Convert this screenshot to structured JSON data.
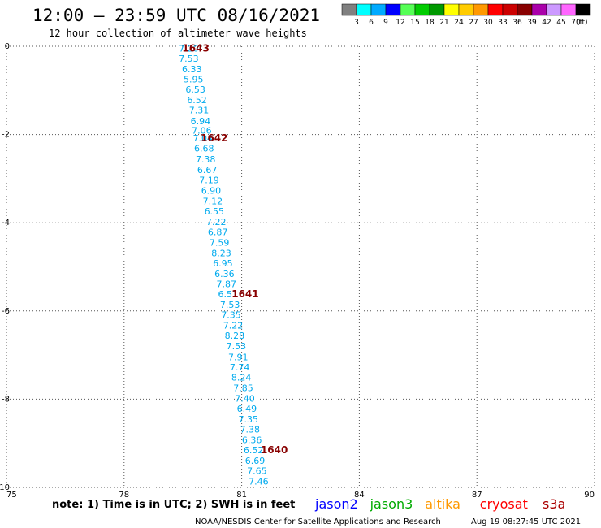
{
  "header": {
    "title": "12:00 – 23:59 UTC 08/16/2021",
    "subtitle": "12 hour collection of altimeter wave heights"
  },
  "legend": {
    "unit": "(ft)",
    "items": [
      {
        "label": "3",
        "color": "#808080"
      },
      {
        "label": "6",
        "color": "#00ffff"
      },
      {
        "label": "9",
        "color": "#00aaff"
      },
      {
        "label": "12",
        "color": "#0000ff"
      },
      {
        "label": "15",
        "color": "#55ff55"
      },
      {
        "label": "18",
        "color": "#00cc00"
      },
      {
        "label": "21",
        "color": "#009900"
      },
      {
        "label": "24",
        "color": "#ffff00"
      },
      {
        "label": "27",
        "color": "#ffcc00"
      },
      {
        "label": "30",
        "color": "#ff9900"
      },
      {
        "label": "33",
        "color": "#ff0000"
      },
      {
        "label": "36",
        "color": "#cc0000"
      },
      {
        "label": "39",
        "color": "#880000"
      },
      {
        "label": "42",
        "color": "#aa00aa"
      },
      {
        "label": "45",
        "color": "#cc99ff"
      },
      {
        "label": "70",
        "color": "#ff66ff"
      },
      {
        "label": "",
        "color": "#000000"
      }
    ]
  },
  "footer": {
    "note": "note: 1) Time is in UTC; 2) SWH is in feet",
    "satellites": [
      {
        "name": "jason2",
        "color": "#0000ff"
      },
      {
        "name": "jason3",
        "color": "#00aa00"
      },
      {
        "name": "altika",
        "color": "#ff9900"
      },
      {
        "name": "cryosat",
        "color": "#ff0000"
      },
      {
        "name": "s3a",
        "color": "#aa0000"
      }
    ],
    "credit": "NOAA/NESDIS Center for Satellite Applications and Research",
    "timestamp": "Aug 19 08:27:45 UTC 2021"
  },
  "chart_data": {
    "type": "scatter",
    "xlim": [
      75,
      90
    ],
    "ylim": [
      -10,
      0
    ],
    "x_ticks": [
      "75",
      "78",
      "81",
      "84",
      "87",
      "90"
    ],
    "y_ticks": [
      "0",
      "-2",
      "-4",
      "-6",
      "-8",
      "-10"
    ],
    "grid": true,
    "point_color": "#00aaee",
    "points": [
      {
        "x": 79.65,
        "y": -0.05,
        "label": "7.20"
      },
      {
        "x": 79.65,
        "y": -0.28,
        "label": "7.53"
      },
      {
        "x": 79.73,
        "y": -0.52,
        "label": "6.33"
      },
      {
        "x": 79.77,
        "y": -0.75,
        "label": "5.95"
      },
      {
        "x": 79.82,
        "y": -0.98,
        "label": "6.53"
      },
      {
        "x": 79.86,
        "y": -1.22,
        "label": "6.52"
      },
      {
        "x": 79.91,
        "y": -1.45,
        "label": "7.31"
      },
      {
        "x": 79.95,
        "y": -1.69,
        "label": "6.94"
      },
      {
        "x": 79.98,
        "y": -1.91,
        "label": "7.06"
      },
      {
        "x": 80.01,
        "y": -2.08,
        "label": "7.04"
      },
      {
        "x": 80.04,
        "y": -2.31,
        "label": "6.68"
      },
      {
        "x": 80.08,
        "y": -2.56,
        "label": "7.38"
      },
      {
        "x": 80.12,
        "y": -2.8,
        "label": "6.67"
      },
      {
        "x": 80.17,
        "y": -3.03,
        "label": "7.19"
      },
      {
        "x": 80.22,
        "y": -3.27,
        "label": "6.90"
      },
      {
        "x": 80.26,
        "y": -3.51,
        "label": "7.12"
      },
      {
        "x": 80.3,
        "y": -3.74,
        "label": "6.55"
      },
      {
        "x": 80.35,
        "y": -3.98,
        "label": "7.22"
      },
      {
        "x": 80.39,
        "y": -4.21,
        "label": "6.87"
      },
      {
        "x": 80.43,
        "y": -4.45,
        "label": "7.59"
      },
      {
        "x": 80.48,
        "y": -4.69,
        "label": "8.23"
      },
      {
        "x": 80.52,
        "y": -4.92,
        "label": "6.95"
      },
      {
        "x": 80.56,
        "y": -5.16,
        "label": "6.36"
      },
      {
        "x": 80.61,
        "y": -5.39,
        "label": "7.87"
      },
      {
        "x": 80.65,
        "y": -5.62,
        "label": "6.51"
      },
      {
        "x": 80.7,
        "y": -5.86,
        "label": "7.53"
      },
      {
        "x": 80.73,
        "y": -6.09,
        "label": "7.35"
      },
      {
        "x": 80.78,
        "y": -6.33,
        "label": "7.22"
      },
      {
        "x": 80.82,
        "y": -6.56,
        "label": "8.28"
      },
      {
        "x": 80.86,
        "y": -6.8,
        "label": "7.53"
      },
      {
        "x": 80.91,
        "y": -7.04,
        "label": "7.91"
      },
      {
        "x": 80.95,
        "y": -7.27,
        "label": "7.74"
      },
      {
        "x": 80.99,
        "y": -7.5,
        "label": "8.24"
      },
      {
        "x": 81.04,
        "y": -7.74,
        "label": "7.85"
      },
      {
        "x": 81.08,
        "y": -7.98,
        "label": "7.40"
      },
      {
        "x": 81.13,
        "y": -8.21,
        "label": "6.49"
      },
      {
        "x": 81.17,
        "y": -8.45,
        "label": "7.35"
      },
      {
        "x": 81.21,
        "y": -8.68,
        "label": "7.38"
      },
      {
        "x": 81.26,
        "y": -8.92,
        "label": "6.36"
      },
      {
        "x": 81.3,
        "y": -9.15,
        "label": "6.52"
      },
      {
        "x": 81.34,
        "y": -9.39,
        "label": "6.69"
      },
      {
        "x": 81.39,
        "y": -9.62,
        "label": "7.65"
      },
      {
        "x": 81.43,
        "y": -9.86,
        "label": "7.46"
      }
    ],
    "time_labels": [
      {
        "x": 79.83,
        "y": -0.05,
        "label": "1643"
      },
      {
        "x": 80.3,
        "y": -2.08,
        "label": "1642"
      },
      {
        "x": 81.09,
        "y": -5.62,
        "label": "1641"
      },
      {
        "x": 81.83,
        "y": -9.15,
        "label": "1640"
      }
    ],
    "time_label_color": "#880000"
  }
}
